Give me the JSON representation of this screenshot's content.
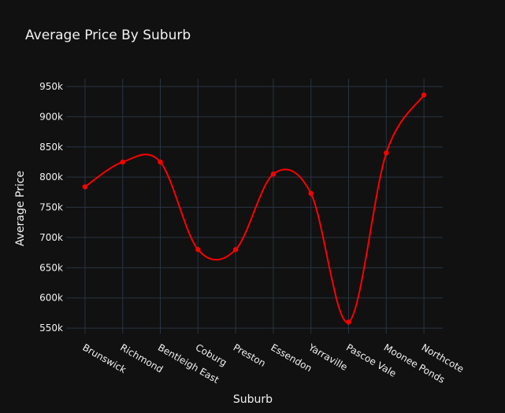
{
  "chart_data": {
    "type": "line",
    "title": "Average Price By Suburb",
    "xlabel": "Suburb",
    "ylabel": "Average Price",
    "categories": [
      "Brunswick",
      "Richmond",
      "Bentleigh East",
      "Coburg",
      "Preston",
      "Essendon",
      "Yarraville",
      "Pascoe Vale",
      "Moonee Ponds",
      "Northcote"
    ],
    "series": [
      {
        "values": [
          784000,
          825000,
          825000,
          680000,
          680000,
          805000,
          773000,
          560000,
          840000,
          936000
        ]
      }
    ],
    "ylim": [
      541000,
      963000
    ],
    "yticks": [
      550000,
      600000,
      650000,
      700000,
      750000,
      800000,
      850000,
      900000,
      950000
    ],
    "ytick_labels": [
      "550k",
      "600k",
      "650k",
      "700k",
      "750k",
      "800k",
      "850k",
      "900k",
      "950k"
    ],
    "grid": true,
    "line_shape": "spline",
    "colors": {
      "background": "#111111",
      "grid": "#283442",
      "line": "#ff0000",
      "text": "#f2f2f2"
    }
  }
}
